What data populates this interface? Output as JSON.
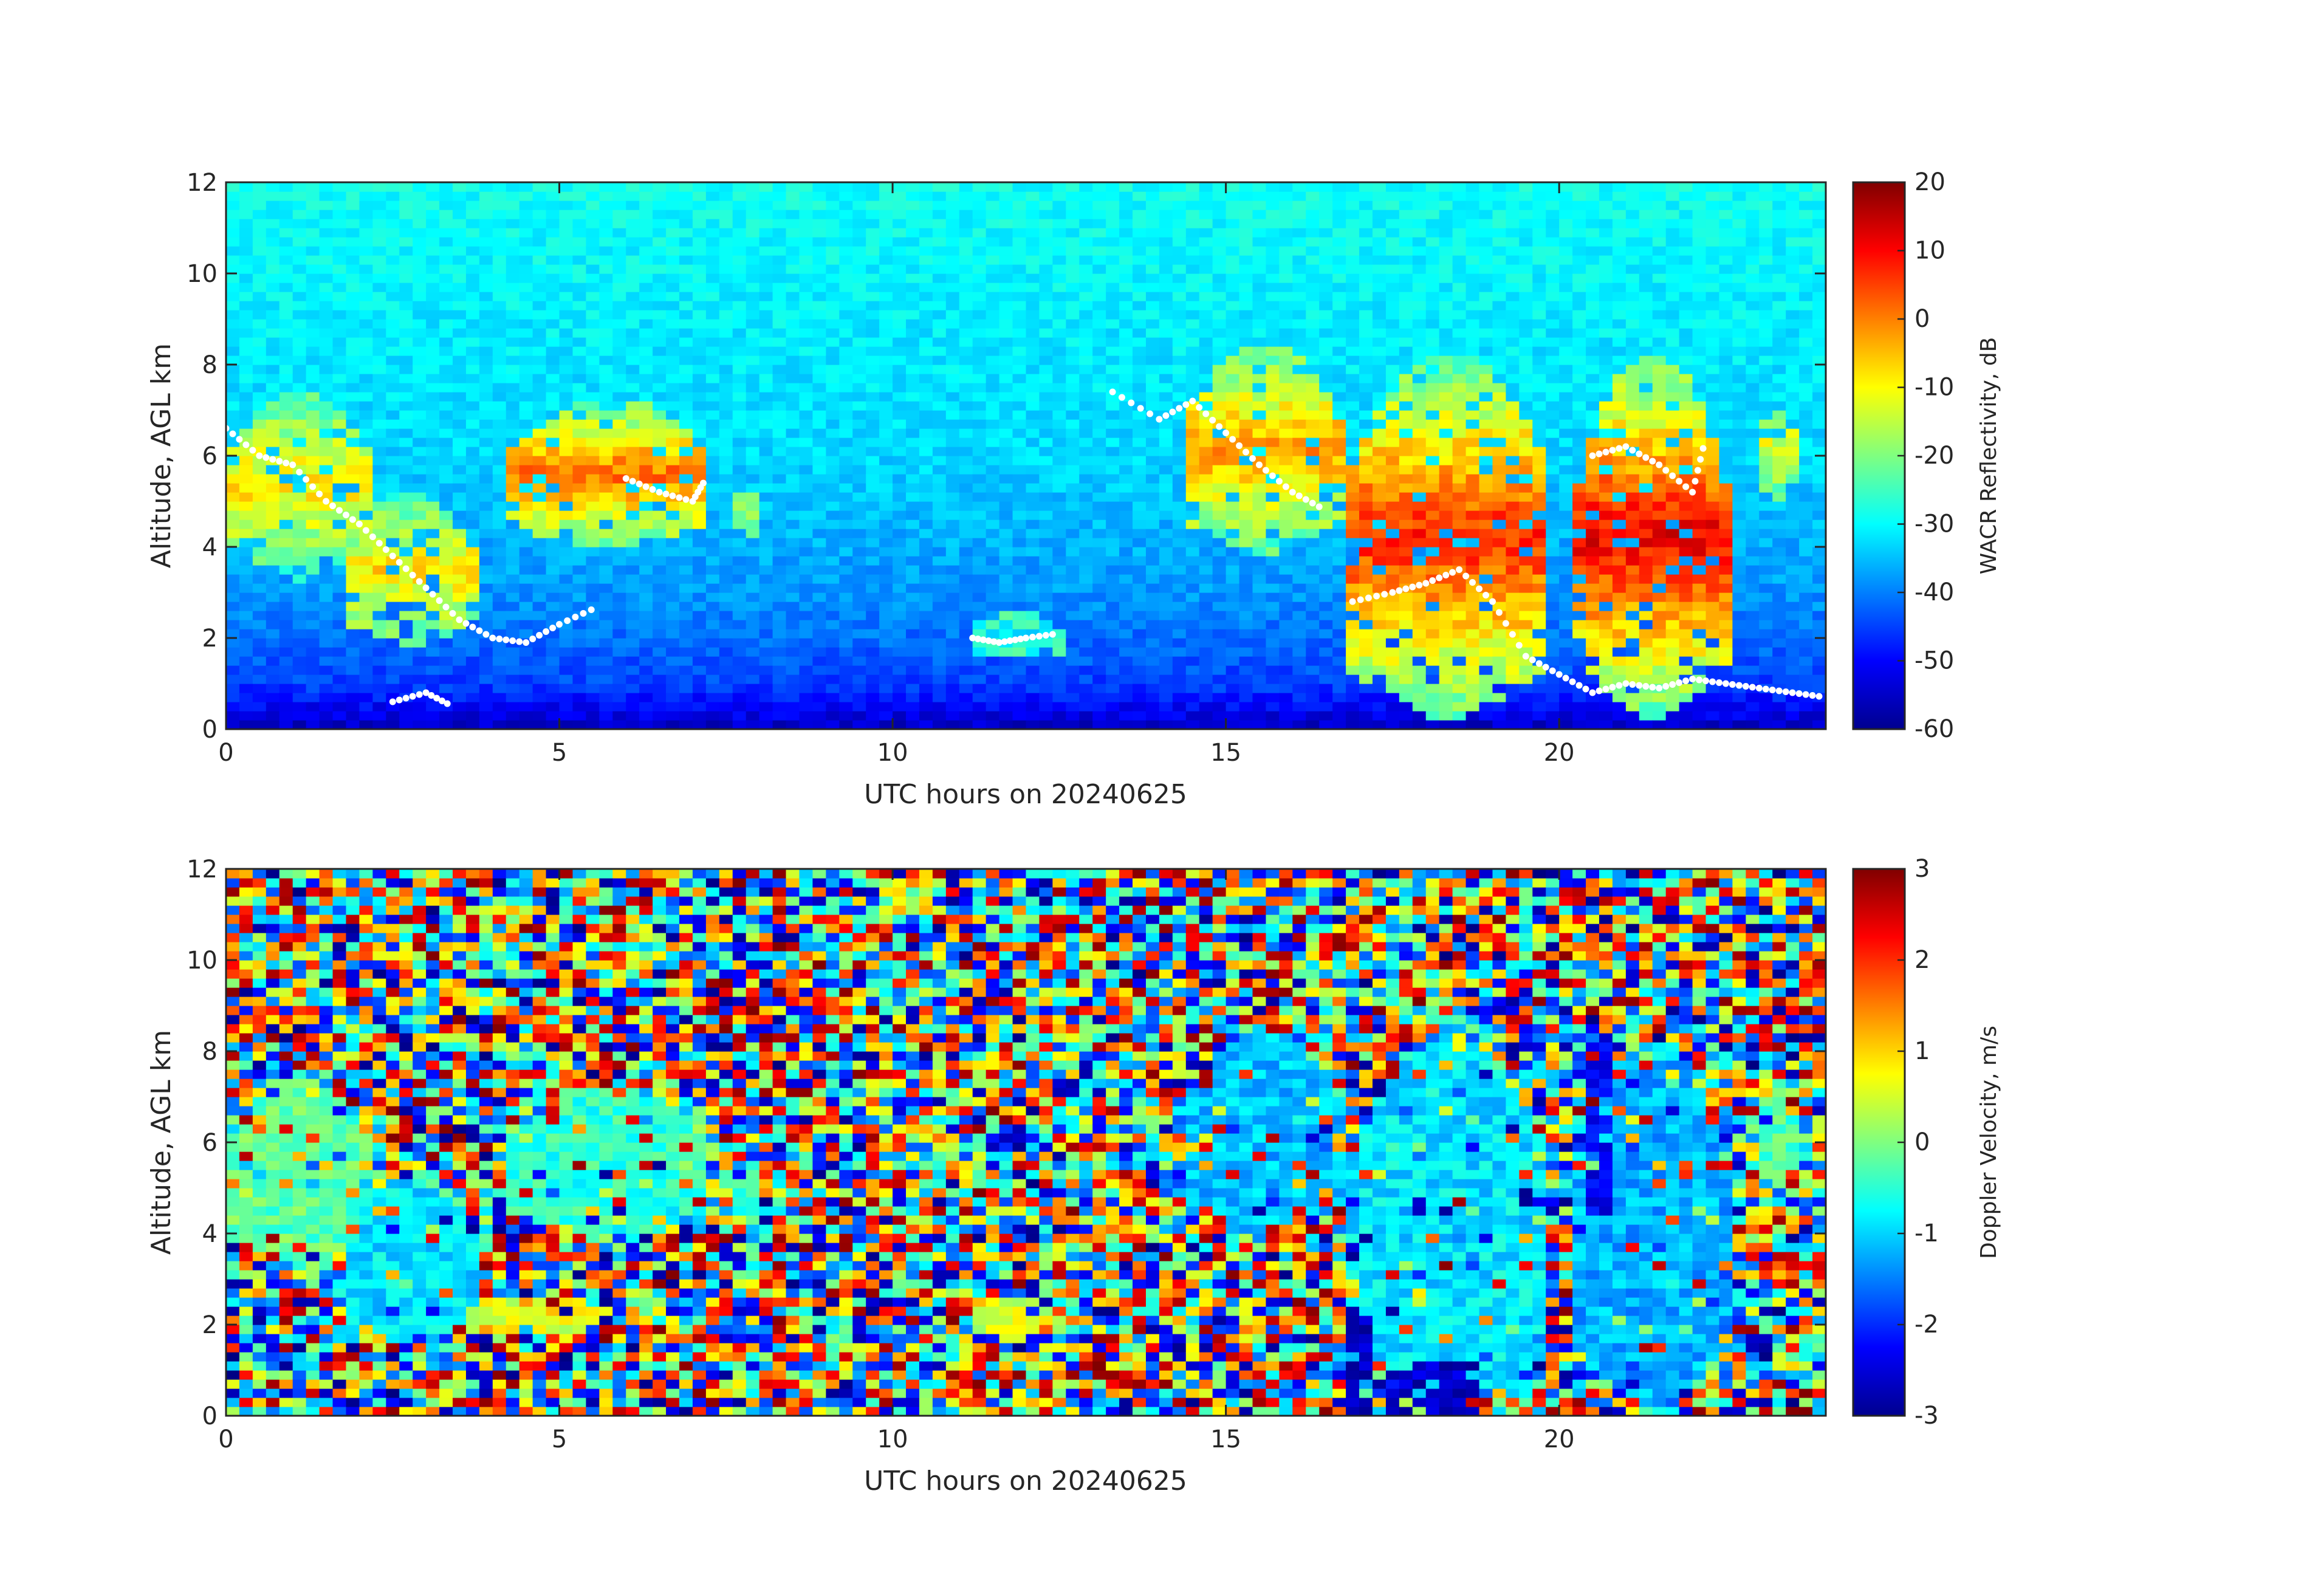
{
  "chart_data": [
    {
      "type": "heatmap",
      "colormap": "jet",
      "xlabel": "UTC hours on 20240625",
      "ylabel": "Altitude, AGL km",
      "xlim": [
        0,
        24
      ],
      "ylim": [
        0,
        12
      ],
      "xticks": [
        0,
        5,
        10,
        15,
        20
      ],
      "yticks": [
        0,
        2,
        4,
        6,
        8,
        10,
        12
      ],
      "colorbar": {
        "label": "WACR Reflectivity, dB",
        "clim": [
          -60,
          20
        ],
        "ticks": [
          20,
          10,
          0,
          -10,
          -20,
          -30,
          -40,
          -50,
          -60
        ]
      },
      "background_value_by_altitude": [
        [
          0,
          -55
        ],
        [
          1,
          -45
        ],
        [
          3,
          -38
        ],
        [
          6,
          -33
        ],
        [
          12,
          -29
        ]
      ],
      "cloud_features": [
        {
          "x_start": 0.0,
          "x_end": 2.2,
          "y_bottom": 3.3,
          "y_top": 7.4,
          "peak_value": -8
        },
        {
          "x_start": 1.8,
          "x_end": 3.7,
          "y_bottom": 1.8,
          "y_top": 5.2,
          "peak_value": -8
        },
        {
          "x_start": 4.3,
          "x_end": 7.2,
          "y_bottom": 3.9,
          "y_top": 7.3,
          "peak_value": 2
        },
        {
          "x_start": 7.7,
          "x_end": 8.0,
          "y_bottom": 4.2,
          "y_top": 5.7,
          "peak_value": -15
        },
        {
          "x_start": 11.2,
          "x_end": 12.5,
          "y_bottom": 1.5,
          "y_top": 2.6,
          "peak_value": -30
        },
        {
          "x_start": 14.4,
          "x_end": 16.7,
          "y_bottom": 3.8,
          "y_top": 8.5,
          "peak_value": -2
        },
        {
          "x_start": 16.8,
          "x_end": 19.9,
          "y_bottom": 0.1,
          "y_top": 8.3,
          "peak_value": 8
        },
        {
          "x_start": 20.3,
          "x_end": 22.5,
          "y_bottom": 0.1,
          "y_top": 8.3,
          "peak_value": 12
        },
        {
          "x_start": 23.0,
          "x_end": 23.5,
          "y_bottom": 5.0,
          "y_top": 7.4,
          "peak_value": -12
        }
      ],
      "white_markers": [
        {
          "x": [
            0.0,
            0.5,
            1.0,
            1.5,
            2.0,
            2.5,
            3.0,
            3.5,
            4.0,
            4.5,
            5.0,
            5.6
          ],
          "y": [
            6.6,
            6.0,
            5.8,
            5.0,
            4.5,
            3.8,
            3.1,
            2.4,
            2.0,
            1.9,
            2.3,
            2.7
          ]
        },
        {
          "x": [
            6.0,
            6.5,
            7.0,
            7.2
          ],
          "y": [
            5.5,
            5.2,
            5.0,
            5.5
          ]
        },
        {
          "x": [
            11.2,
            11.6,
            12.0,
            12.5
          ],
          "y": [
            2.0,
            1.9,
            2.0,
            2.1
          ]
        },
        {
          "x": [
            13.3,
            14.0,
            14.5,
            15.0,
            15.5,
            16.0,
            16.5
          ],
          "y": [
            7.4,
            6.8,
            7.2,
            6.5,
            5.8,
            5.2,
            4.8
          ]
        },
        {
          "x": [
            16.9,
            17.5,
            18.0,
            18.5,
            19.0,
            19.5,
            20.0,
            20.5,
            21.0,
            21.5,
            22.0,
            22.5,
            23.0,
            23.5,
            24.0
          ],
          "y": [
            2.8,
            3.0,
            3.2,
            3.5,
            2.8,
            1.6,
            1.2,
            0.8,
            1.0,
            0.9,
            1.1,
            1.0,
            0.9,
            0.8,
            0.7
          ]
        },
        {
          "x": [
            2.5,
            3.0,
            3.4
          ],
          "y": [
            0.6,
            0.8,
            0.5
          ]
        },
        {
          "x": [
            20.5,
            21.0,
            21.5,
            22.0,
            22.2
          ],
          "y": [
            6.0,
            6.2,
            5.8,
            5.2,
            6.4
          ]
        }
      ]
    },
    {
      "type": "heatmap",
      "colormap": "jet",
      "xlabel": "UTC hours on 20240625",
      "ylabel": "Altitude, AGL km",
      "xlim": [
        0,
        24
      ],
      "ylim": [
        0,
        12
      ],
      "xticks": [
        0,
        5,
        10,
        15,
        20
      ],
      "yticks": [
        0,
        2,
        4,
        6,
        8,
        10,
        12
      ],
      "colorbar": {
        "label": "Doppler Velocity, m/s",
        "clim": [
          -3,
          3
        ],
        "ticks": [
          3,
          2,
          1,
          0,
          -1,
          -2,
          -3
        ]
      },
      "background": "random noise spanning -3 to 3",
      "cloud_features": [
        {
          "x_start": 0.0,
          "x_end": 2.2,
          "y_bottom": 3.3,
          "y_top": 7.4,
          "mean_value": -0.2
        },
        {
          "x_start": 1.8,
          "x_end": 3.7,
          "y_bottom": 1.5,
          "y_top": 5.2,
          "mean_value": -0.9
        },
        {
          "x_start": 4.3,
          "x_end": 7.2,
          "y_bottom": 3.9,
          "y_top": 7.3,
          "mean_value": -0.5
        },
        {
          "x_start": 7.7,
          "x_end": 8.0,
          "y_bottom": 4.2,
          "y_top": 5.7,
          "mean_value": -0.5
        },
        {
          "x_start": 3.7,
          "x_end": 5.6,
          "y_bottom": 1.8,
          "y_top": 2.7,
          "mean_value": 0.6
        },
        {
          "x_start": 11.2,
          "x_end": 12.5,
          "y_bottom": 1.7,
          "y_top": 2.6,
          "mean_value": 0.5
        },
        {
          "x_start": 14.4,
          "x_end": 16.7,
          "y_bottom": 3.8,
          "y_top": 8.5,
          "mean_value": -1.1
        },
        {
          "x_start": 16.8,
          "x_end": 19.9,
          "y_bottom": 0.1,
          "y_top": 8.3,
          "mean_value": -0.9
        },
        {
          "x_start": 20.3,
          "x_end": 22.5,
          "y_bottom": 0.1,
          "y_top": 8.3,
          "mean_value": -1.2
        },
        {
          "x_start": 23.0,
          "x_end": 23.5,
          "y_bottom": 5.0,
          "y_top": 7.4,
          "mean_value": -0.3
        }
      ],
      "downdraft_features": [
        {
          "x_start": 16.8,
          "x_end": 17.2,
          "y_bottom": 0.1,
          "y_top": 2.4,
          "mean_value": -2.6
        },
        {
          "x_start": 17.5,
          "x_end": 18.8,
          "y_bottom": 0.1,
          "y_top": 1.2,
          "mean_value": -2.6
        },
        {
          "x_start": 20.4,
          "x_end": 20.8,
          "y_bottom": 4.5,
          "y_top": 8.1,
          "mean_value": -2.3
        }
      ]
    }
  ]
}
